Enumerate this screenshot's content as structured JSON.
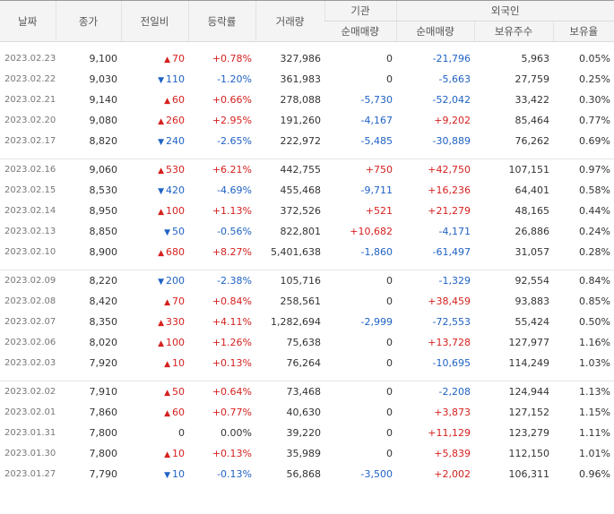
{
  "headers": {
    "date": "날짜",
    "close": "종가",
    "change": "전일비",
    "rate": "등락률",
    "volume": "거래량",
    "institution": "기관",
    "institution_net": "순매매량",
    "foreign": "외국인",
    "foreign_net": "순매매량",
    "foreign_hold": "보유주수",
    "foreign_ratio": "보유율"
  },
  "colors": {
    "up": "#d5211f",
    "down": "#1f62c4"
  },
  "groups": [
    {
      "rows": [
        {
          "date": "2023.02.23",
          "close": "9,100",
          "dir": "up",
          "chg": "70",
          "rate": "+0.78%",
          "vol": "327,986",
          "inst": "0",
          "frn": "-21,796",
          "hold": "5,963",
          "ratio": "0.05%"
        },
        {
          "date": "2023.02.22",
          "close": "9,030",
          "dir": "down",
          "chg": "110",
          "rate": "-1.20%",
          "vol": "361,983",
          "inst": "0",
          "frn": "-5,663",
          "hold": "27,759",
          "ratio": "0.25%"
        },
        {
          "date": "2023.02.21",
          "close": "9,140",
          "dir": "up",
          "chg": "60",
          "rate": "+0.66%",
          "vol": "278,088",
          "inst": "-5,730",
          "frn": "-52,042",
          "hold": "33,422",
          "ratio": "0.30%"
        },
        {
          "date": "2023.02.20",
          "close": "9,080",
          "dir": "up",
          "chg": "260",
          "rate": "+2.95%",
          "vol": "191,260",
          "inst": "-4,167",
          "frn": "+9,202",
          "hold": "85,464",
          "ratio": "0.77%"
        },
        {
          "date": "2023.02.17",
          "close": "8,820",
          "dir": "down",
          "chg": "240",
          "rate": "-2.65%",
          "vol": "222,972",
          "inst": "-5,485",
          "frn": "-30,889",
          "hold": "76,262",
          "ratio": "0.69%"
        }
      ]
    },
    {
      "rows": [
        {
          "date": "2023.02.16",
          "close": "9,060",
          "dir": "up",
          "chg": "530",
          "rate": "+6.21%",
          "vol": "442,755",
          "inst": "+750",
          "frn": "+42,750",
          "hold": "107,151",
          "ratio": "0.97%"
        },
        {
          "date": "2023.02.15",
          "close": "8,530",
          "dir": "down",
          "chg": "420",
          "rate": "-4.69%",
          "vol": "455,468",
          "inst": "-9,711",
          "frn": "+16,236",
          "hold": "64,401",
          "ratio": "0.58%"
        },
        {
          "date": "2023.02.14",
          "close": "8,950",
          "dir": "up",
          "chg": "100",
          "rate": "+1.13%",
          "vol": "372,526",
          "inst": "+521",
          "frn": "+21,279",
          "hold": "48,165",
          "ratio": "0.44%"
        },
        {
          "date": "2023.02.13",
          "close": "8,850",
          "dir": "down",
          "chg": "50",
          "rate": "-0.56%",
          "vol": "822,801",
          "inst": "+10,682",
          "frn": "-4,171",
          "hold": "26,886",
          "ratio": "0.24%"
        },
        {
          "date": "2023.02.10",
          "close": "8,900",
          "dir": "up",
          "chg": "680",
          "rate": "+8.27%",
          "vol": "5,401,638",
          "inst": "-1,860",
          "frn": "-61,497",
          "hold": "31,057",
          "ratio": "0.28%"
        }
      ]
    },
    {
      "rows": [
        {
          "date": "2023.02.09",
          "close": "8,220",
          "dir": "down",
          "chg": "200",
          "rate": "-2.38%",
          "vol": "105,716",
          "inst": "0",
          "frn": "-1,329",
          "hold": "92,554",
          "ratio": "0.84%"
        },
        {
          "date": "2023.02.08",
          "close": "8,420",
          "dir": "up",
          "chg": "70",
          "rate": "+0.84%",
          "vol": "258,561",
          "inst": "0",
          "frn": "+38,459",
          "hold": "93,883",
          "ratio": "0.85%"
        },
        {
          "date": "2023.02.07",
          "close": "8,350",
          "dir": "up",
          "chg": "330",
          "rate": "+4.11%",
          "vol": "1,282,694",
          "inst": "-2,999",
          "frn": "-72,553",
          "hold": "55,424",
          "ratio": "0.50%"
        },
        {
          "date": "2023.02.06",
          "close": "8,020",
          "dir": "up",
          "chg": "100",
          "rate": "+1.26%",
          "vol": "75,638",
          "inst": "0",
          "frn": "+13,728",
          "hold": "127,977",
          "ratio": "1.16%"
        },
        {
          "date": "2023.02.03",
          "close": "7,920",
          "dir": "up",
          "chg": "10",
          "rate": "+0.13%",
          "vol": "76,264",
          "inst": "0",
          "frn": "-10,695",
          "hold": "114,249",
          "ratio": "1.03%"
        }
      ]
    },
    {
      "rows": [
        {
          "date": "2023.02.02",
          "close": "7,910",
          "dir": "up",
          "chg": "50",
          "rate": "+0.64%",
          "vol": "73,468",
          "inst": "0",
          "frn": "-2,208",
          "hold": "124,944",
          "ratio": "1.13%"
        },
        {
          "date": "2023.02.01",
          "close": "7,860",
          "dir": "up",
          "chg": "60",
          "rate": "+0.77%",
          "vol": "40,630",
          "inst": "0",
          "frn": "+3,873",
          "hold": "127,152",
          "ratio": "1.15%"
        },
        {
          "date": "2023.01.31",
          "close": "7,800",
          "dir": "none",
          "chg": "0",
          "rate": "0.00%",
          "vol": "39,220",
          "inst": "0",
          "frn": "+11,129",
          "hold": "123,279",
          "ratio": "1.11%"
        },
        {
          "date": "2023.01.30",
          "close": "7,800",
          "dir": "up",
          "chg": "10",
          "rate": "+0.13%",
          "vol": "35,989",
          "inst": "0",
          "frn": "+5,839",
          "hold": "112,150",
          "ratio": "1.01%"
        },
        {
          "date": "2023.01.27",
          "close": "7,790",
          "dir": "down",
          "chg": "10",
          "rate": "-0.13%",
          "vol": "56,868",
          "inst": "-3,500",
          "frn": "+2,002",
          "hold": "106,311",
          "ratio": "0.96%"
        }
      ]
    }
  ]
}
